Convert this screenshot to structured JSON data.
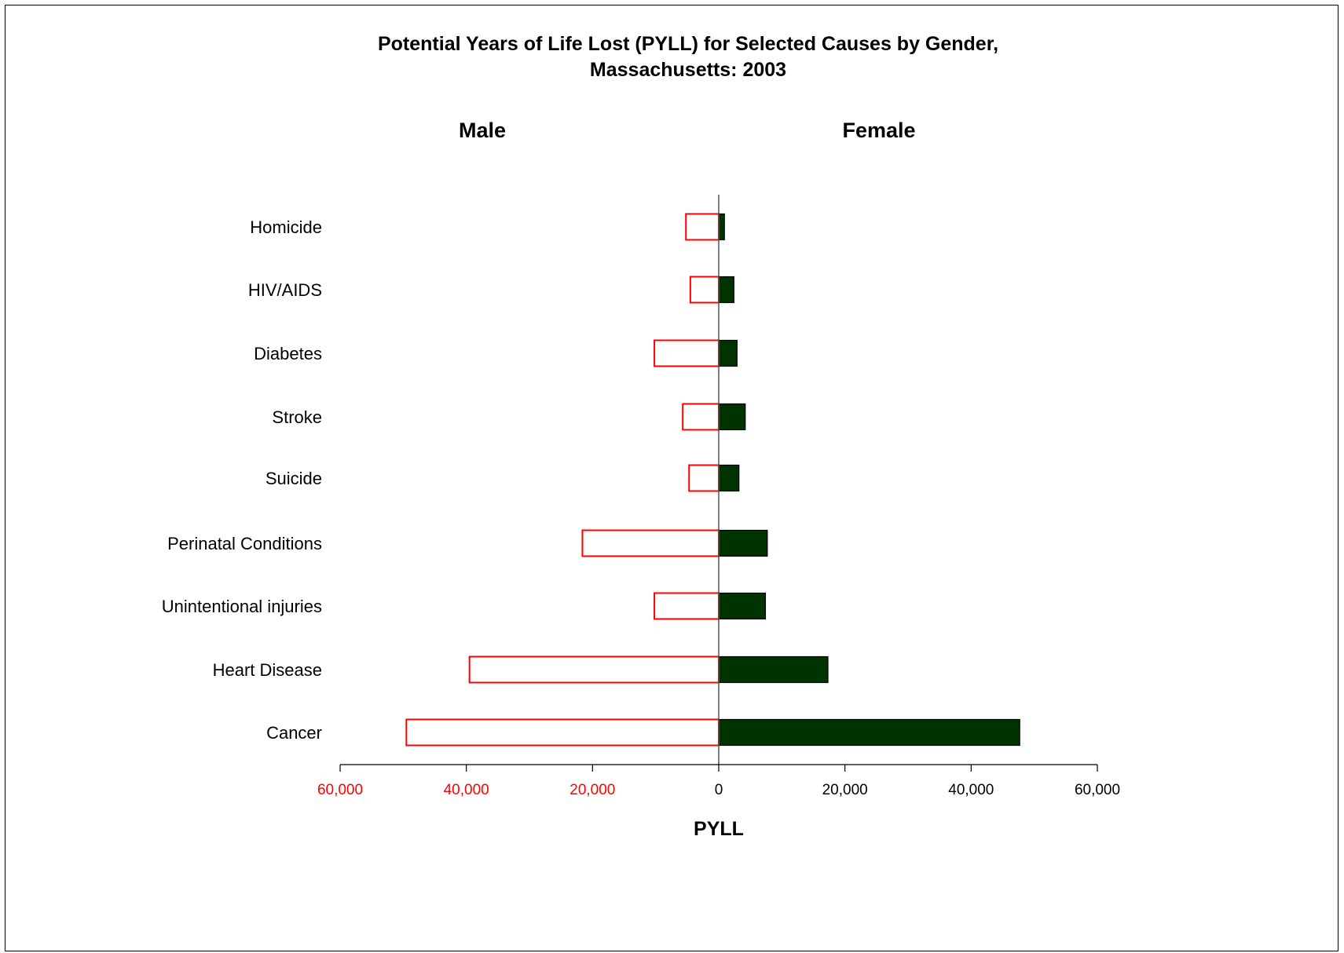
{
  "chart_data": {
    "type": "bar",
    "orientation": "horizontal",
    "layout": "population-pyramid",
    "title": "Potential Years of Life Lost (PYLL) for Selected Causes by Gender,",
    "subtitle": "Massachusetts: 2003",
    "xlabel": "PYLL",
    "ylabel": "",
    "xlim": [
      -60000,
      60000
    ],
    "x_ticks": [
      -60000,
      -40000,
      -20000,
      0,
      20000,
      40000,
      60000
    ],
    "x_tick_labels": [
      "60,000",
      "40,000",
      "20,000",
      "0",
      "20,000",
      "40,000",
      "60,000"
    ],
    "grid": false,
    "categories": [
      "Homicide",
      "HIV/AIDS",
      "Diabetes",
      "Stroke",
      "Suicide",
      "Perinatal Conditions",
      "Unintentional injuries",
      "Heart Disease",
      "Cancer"
    ],
    "series": [
      {
        "name": "Male",
        "side": "left",
        "values": [
          5200,
          4500,
          10200,
          5700,
          4700,
          21600,
          10200,
          39500,
          49500
        ]
      },
      {
        "name": "Female",
        "side": "right",
        "values": [
          900,
          2400,
          2900,
          4200,
          3200,
          7700,
          7400,
          17300,
          47700
        ]
      }
    ],
    "colors": {
      "male_outline": "#ff0000",
      "male_fill": "#ffffff",
      "female_fill": "#003300",
      "female_outline": "#000000",
      "left_tick_labels": "#ff0000",
      "right_tick_labels": "#000000"
    }
  }
}
